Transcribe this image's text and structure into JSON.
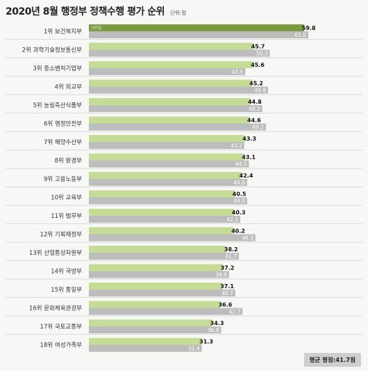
{
  "header": {
    "title": "2020년 8월 행정부 정책수행 평가 순위",
    "unit": "단위:점"
  },
  "footer": {
    "average": "평균 평점:41.7점"
  },
  "legend_inline": "이번달",
  "colors": {
    "current_top": "#7a9a3c",
    "current": "#c5dc94",
    "previous": "#bdbdbd",
    "divider": "#d9d9d9"
  },
  "chart_data": {
    "type": "bar",
    "orientation": "horizontal",
    "categories": [
      "1위 보건복지부",
      "2위 과학기술정보통신부",
      "3위 중소벤처기업부",
      "4위 외교부",
      "5위 농림축산식품부",
      "6위 행정안전부",
      "7위 해양수산부",
      "8위 환경부",
      "9위 고용노동부",
      "10위 교육부",
      "11위 법무부",
      "12위 기획재정부",
      "13위 산업통상자원부",
      "14위 국방부",
      "15위 통일부",
      "16위 문화체육관광부",
      "17위 국토교통부",
      "18위 여성가족부"
    ],
    "series": [
      {
        "name": "이번달",
        "values": [
          59.8,
          45.7,
          45.6,
          45.2,
          44.8,
          44.6,
          43.3,
          43.1,
          42.4,
          40.5,
          40.3,
          40.2,
          38.2,
          37.2,
          37.1,
          36.6,
          34.3,
          31.3
        ]
      },
      {
        "values": [
          61.0,
          50.3,
          43.5,
          49.8,
          48.2,
          49.2,
          43.2,
          44.5,
          44.0,
          44.0,
          42.1,
          46.3,
          41.7,
          39.0,
          40.7,
          42.7,
          36.8,
          31.4
        ]
      }
    ],
    "xlim": [
      0,
      61
    ]
  }
}
